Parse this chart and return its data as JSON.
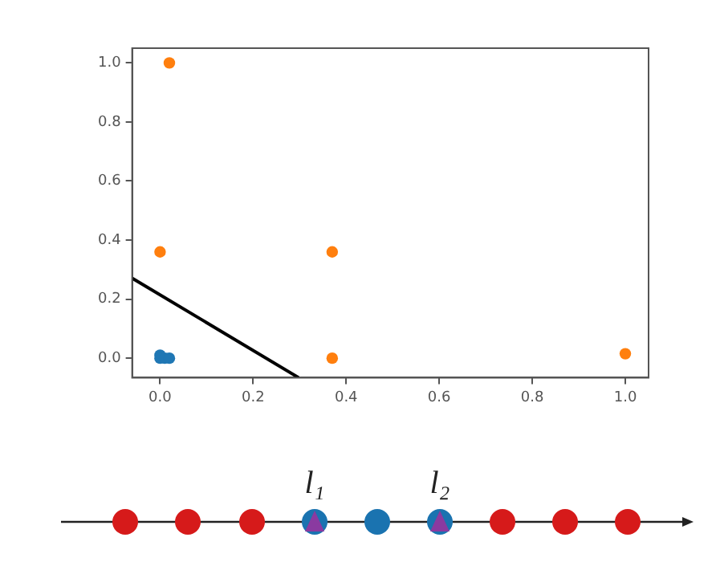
{
  "chart_data": {
    "type": "scatter",
    "marker": "circle",
    "xlim": [
      -0.06,
      1.05
    ],
    "ylim": [
      -0.066,
      1.05
    ],
    "xticks": [
      {
        "value": 0,
        "label": "0.0"
      },
      0.2,
      0.4,
      0.6,
      0.8,
      {
        "value": 1,
        "label": "1.0"
      }
    ],
    "yticks": [
      {
        "value": 0,
        "label": "0.0"
      },
      0.2,
      0.4,
      0.6,
      0.8,
      {
        "value": 1,
        "label": "1.0"
      }
    ],
    "series": [
      {
        "color": "#1f77b4",
        "x": [
          0,
          0,
          0.01,
          0.02
        ],
        "values": [
          0.01,
          0,
          0,
          0
        ]
      },
      {
        "color": "#ff7f0e",
        "x": [
          0.02,
          0,
          0.37,
          0.37,
          1.0
        ],
        "values": [
          1.0,
          0.36,
          0.36,
          0,
          0.015
        ]
      },
      {
        "type": "line",
        "marker": "none",
        "color": "#000000",
        "line_style": "solid",
        "x": [
          -0.06,
          0.298
        ],
        "values": [
          0.271,
          -0.066
        ]
      }
    ],
    "annotations": [
      "l₁",
      "l₂"
    ]
  }
}
